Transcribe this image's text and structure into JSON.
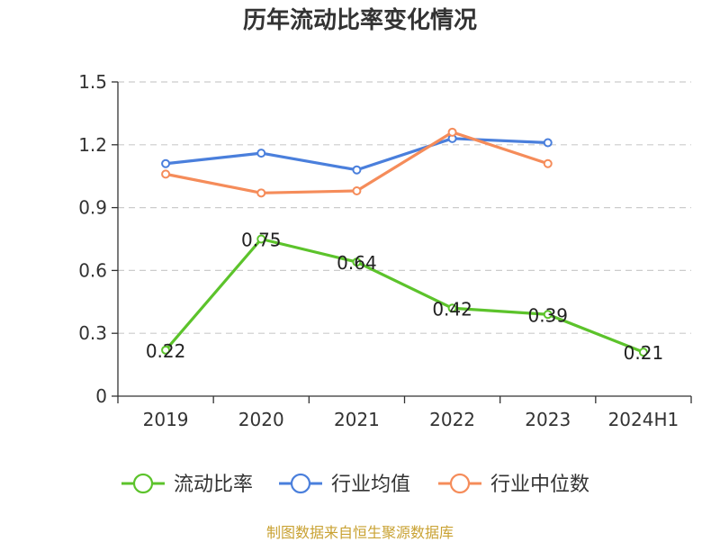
{
  "chart_data": {
    "type": "line",
    "title": "历年流动比率变化情况",
    "categories": [
      "2019",
      "2020",
      "2021",
      "2022",
      "2023",
      "2024H1"
    ],
    "ylim": [
      0,
      1.5
    ],
    "yticks": [
      "0",
      "0.3",
      "0.6",
      "0.9",
      "1.2",
      "1.5"
    ],
    "ytick_values": [
      0,
      0.3,
      0.6,
      0.9,
      1.2,
      1.5
    ],
    "grid": true,
    "legend_position": "bottom",
    "series": [
      {
        "name": "流动比率",
        "color": "#5cc32b",
        "values": [
          0.22,
          0.75,
          0.64,
          0.42,
          0.39,
          0.21
        ],
        "labels": [
          "0.22",
          "0.75",
          "0.64",
          "0.42",
          "0.39",
          "0.21"
        ]
      },
      {
        "name": "行业均值",
        "color": "#4a7fdc",
        "values": [
          1.11,
          1.16,
          1.08,
          1.23,
          1.21,
          null
        ]
      },
      {
        "name": "行业中位数",
        "color": "#f58c5a",
        "values": [
          1.06,
          0.97,
          0.98,
          1.26,
          1.11,
          null
        ]
      }
    ]
  },
  "footer": {
    "source": "制图数据来自恒生聚源数据库"
  }
}
